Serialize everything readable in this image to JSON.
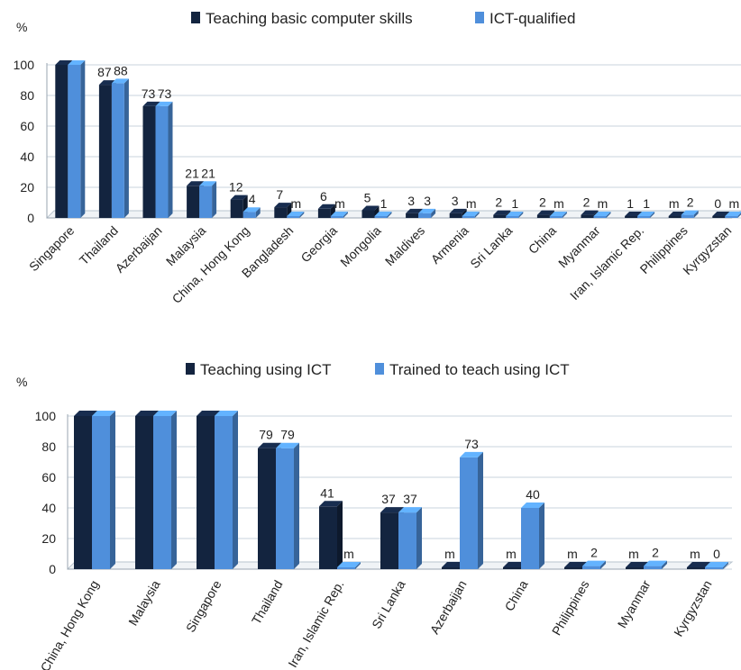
{
  "chart_data": [
    {
      "type": "bar",
      "ylabel": "%",
      "ylim": [
        0,
        100
      ],
      "yticks": [
        "0",
        "20",
        "40",
        "60",
        "80",
        "100"
      ],
      "grid": true,
      "legend_position": "top",
      "categories": [
        "Singapore",
        "Thailand",
        "Azerbaijan",
        "Malaysia",
        "China, Hong Kong",
        "Bangladesh",
        "Georgia",
        "Mongolia",
        "Maldives",
        "Armenia",
        "Sri Lanka",
        "China",
        "Myanmar",
        "Iran, Islamic Rep.",
        "Philippines",
        "Kyrgyzstan"
      ],
      "series": [
        {
          "name": "Teaching basic computer skills",
          "color": "#13243f",
          "values": [
            100,
            87,
            73,
            21,
            12,
            7,
            6,
            5,
            3,
            3,
            2,
            2,
            2,
            1,
            null,
            0
          ],
          "labels": [
            "",
            "87",
            "73",
            "21",
            "12",
            "7",
            "6",
            "5",
            "3",
            "3",
            "2",
            "2",
            "2",
            "1",
            "m",
            "0"
          ]
        },
        {
          "name": "ICT-qualified",
          "color": "#4f8fdb",
          "values": [
            100,
            88,
            73,
            21,
            4,
            null,
            null,
            1,
            3,
            null,
            1,
            null,
            null,
            1,
            2,
            null
          ],
          "labels": [
            "",
            "88",
            "73",
            "21",
            "4",
            "m",
            "m",
            "1",
            "3",
            "m",
            "1",
            "m",
            "m",
            "1",
            "2",
            "m"
          ]
        }
      ]
    },
    {
      "type": "bar",
      "ylabel": "%",
      "ylim": [
        0,
        100
      ],
      "yticks": [
        "0",
        "20",
        "40",
        "60",
        "80",
        "100"
      ],
      "grid": true,
      "legend_position": "top",
      "categories": [
        "China, Hong Kong",
        "Malaysia",
        "Singapore",
        "Thailand",
        "Iran, Islamic Rep.",
        "Sri Lanka",
        "Azerbaijan",
        "China",
        "Philippines",
        "Myanmar",
        "Kyrgyzstan"
      ],
      "series": [
        {
          "name": "Teaching using ICT",
          "color": "#13243f",
          "values": [
            100,
            100,
            100,
            79,
            41,
            37,
            null,
            null,
            null,
            null,
            null
          ],
          "labels": [
            "",
            "",
            "",
            "79",
            "41",
            "37",
            "m",
            "m",
            "m",
            "m",
            "m"
          ]
        },
        {
          "name": "Trained to teach using ICT",
          "color": "#4f8fdb",
          "values": [
            100,
            100,
            100,
            79,
            null,
            37,
            73,
            40,
            2,
            2,
            0
          ],
          "labels": [
            "",
            "",
            "",
            "79",
            "m",
            "37",
            "73",
            "40",
            "2",
            "2",
            "0"
          ]
        }
      ]
    }
  ]
}
